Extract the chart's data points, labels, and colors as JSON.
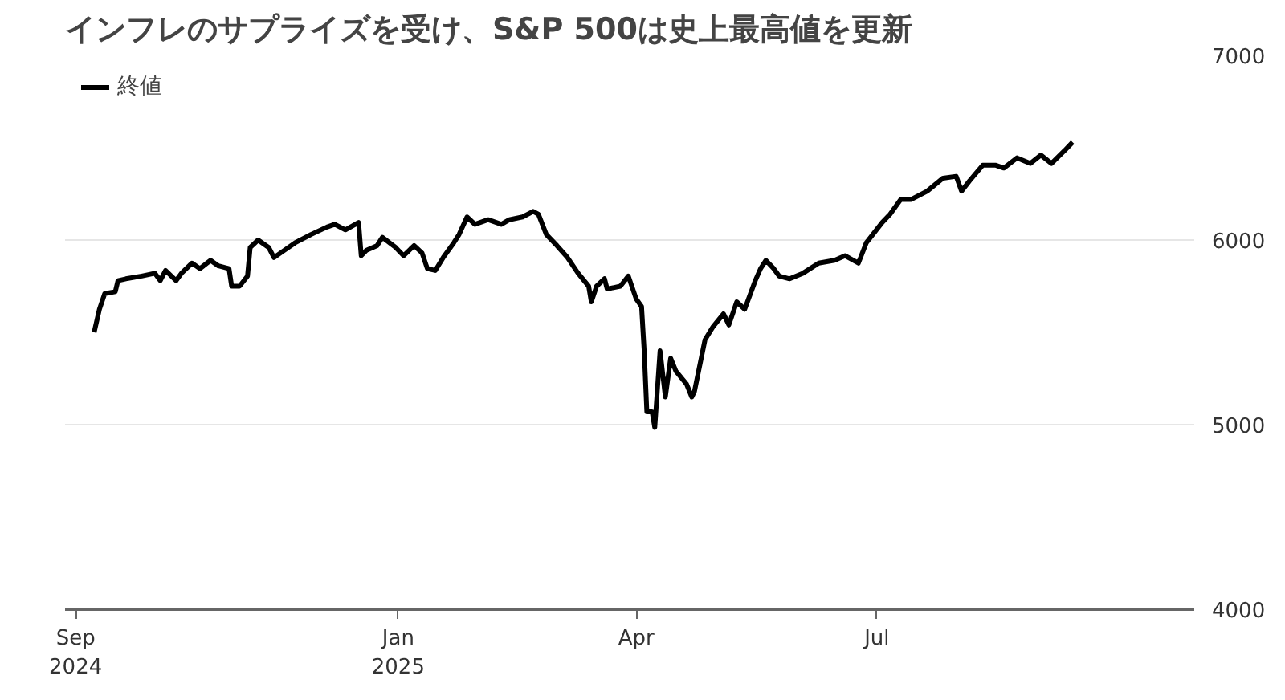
{
  "chart_data": {
    "type": "line",
    "title": "インフレのサプライズを受け、S&P 500は史上最高値を更新",
    "x": [
      "2024-09-08",
      "2024-09-10",
      "2024-09-12",
      "2024-09-16",
      "2024-09-17",
      "2024-09-20",
      "2024-09-26",
      "2024-10-01",
      "2024-10-03",
      "2024-10-05",
      "2024-10-09",
      "2024-10-11",
      "2024-10-15",
      "2024-10-18",
      "2024-10-22",
      "2024-10-25",
      "2024-10-29",
      "2024-10-30",
      "2024-11-02",
      "2024-11-05",
      "2024-11-06",
      "2024-11-09",
      "2024-11-13",
      "2024-11-15",
      "2024-11-19",
      "2024-11-23",
      "2024-11-29",
      "2024-12-05",
      "2024-12-08",
      "2024-12-12",
      "2024-12-17",
      "2024-12-18",
      "2024-12-20",
      "2024-12-24",
      "2024-12-26",
      "2024-12-31",
      "2025-01-03",
      "2025-01-07",
      "2025-01-10",
      "2025-01-12",
      "2025-01-15",
      "2025-01-18",
      "2025-01-22",
      "2025-01-24",
      "2025-01-27",
      "2025-01-30",
      "2025-02-04",
      "2025-02-09",
      "2025-02-12",
      "2025-02-17",
      "2025-02-21",
      "2025-02-23",
      "2025-02-26",
      "2025-03-02",
      "2025-03-06",
      "2025-03-10",
      "2025-03-14",
      "2025-03-15",
      "2025-03-17",
      "2025-03-20",
      "2025-03-21",
      "2025-03-26",
      "2025-03-29",
      "2025-04-01",
      "2025-04-03",
      "2025-04-04",
      "2025-04-05",
      "2025-04-07",
      "2025-04-08",
      "2025-04-10",
      "2025-04-12",
      "2025-04-14",
      "2025-04-16",
      "2025-04-20",
      "2025-04-22",
      "2025-04-23",
      "2025-04-27",
      "2025-04-30",
      "2025-05-04",
      "2025-05-06",
      "2025-05-09",
      "2025-05-12",
      "2025-05-16",
      "2025-05-18",
      "2025-05-20",
      "2025-05-23",
      "2025-05-25",
      "2025-05-29",
      "2025-06-03",
      "2025-06-09",
      "2025-06-15",
      "2025-06-19",
      "2025-06-24",
      "2025-06-27",
      "2025-07-03",
      "2025-07-06",
      "2025-07-10",
      "2025-07-14",
      "2025-07-20",
      "2025-07-26",
      "2025-07-31",
      "2025-08-02",
      "2025-08-05",
      "2025-08-10",
      "2025-08-15",
      "2025-08-18",
      "2025-08-23",
      "2025-08-28",
      "2025-09-01",
      "2025-09-05",
      "2025-09-10",
      "2025-09-13"
    ],
    "series": [
      {
        "name": "終値",
        "color": "#000000",
        "values": [
          5500,
          5625,
          5710,
          5720,
          5780,
          5790,
          5805,
          5820,
          5780,
          5835,
          5780,
          5820,
          5875,
          5845,
          5890,
          5860,
          5845,
          5750,
          5750,
          5805,
          5960,
          6000,
          5960,
          5905,
          5945,
          5985,
          6030,
          6070,
          6085,
          6055,
          6095,
          5915,
          5945,
          5970,
          6015,
          5960,
          5915,
          5970,
          5930,
          5845,
          5835,
          5905,
          5985,
          6030,
          6125,
          6085,
          6110,
          6085,
          6110,
          6125,
          6155,
          6140,
          6030,
          5970,
          5905,
          5820,
          5750,
          5665,
          5750,
          5790,
          5735,
          5750,
          5805,
          5680,
          5640,
          5400,
          5070,
          5070,
          4985,
          5400,
          5150,
          5360,
          5290,
          5220,
          5150,
          5180,
          5460,
          5530,
          5600,
          5540,
          5665,
          5625,
          5780,
          5845,
          5890,
          5845,
          5805,
          5790,
          5820,
          5875,
          5890,
          5915,
          5875,
          5985,
          6095,
          6140,
          6220,
          6220,
          6265,
          6335,
          6345,
          6265,
          6320,
          6405,
          6405,
          6390,
          6445,
          6415,
          6460,
          6415,
          6485,
          6530
        ]
      }
    ],
    "xlim": [
      "2024-08-28",
      "2025-10-29"
    ],
    "xticks": [
      {
        "value": "2024-09-01",
        "label": "Sep\n2024"
      },
      {
        "value": "2025-01-01",
        "label": "Jan\n2025"
      },
      {
        "value": "2025-04-01",
        "label": "Apr"
      },
      {
        "value": "2025-07-01",
        "label": "Jul"
      }
    ],
    "ylim": [
      4000,
      7000
    ],
    "yticks": [
      4000,
      5000,
      6000,
      7000
    ],
    "grid": "y",
    "legend": "top left",
    "line_style": "solid"
  }
}
